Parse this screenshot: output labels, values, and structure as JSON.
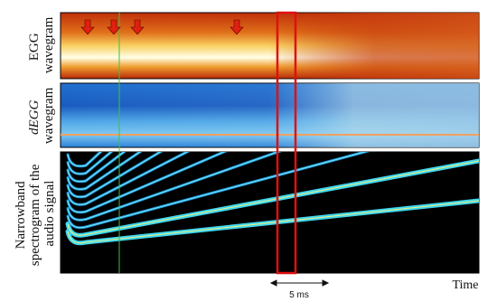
{
  "panels": [
    {
      "label_lines": [
        "EGG",
        "wavegram"
      ]
    },
    {
      "label_lines": [
        "dEGG",
        "wavegram"
      ]
    },
    {
      "label_lines": [
        "Narrowband",
        "spectrogram of the",
        "audio signal"
      ]
    }
  ],
  "scale_bar": {
    "label": "5 ms"
  },
  "axis_label": "Time"
}
